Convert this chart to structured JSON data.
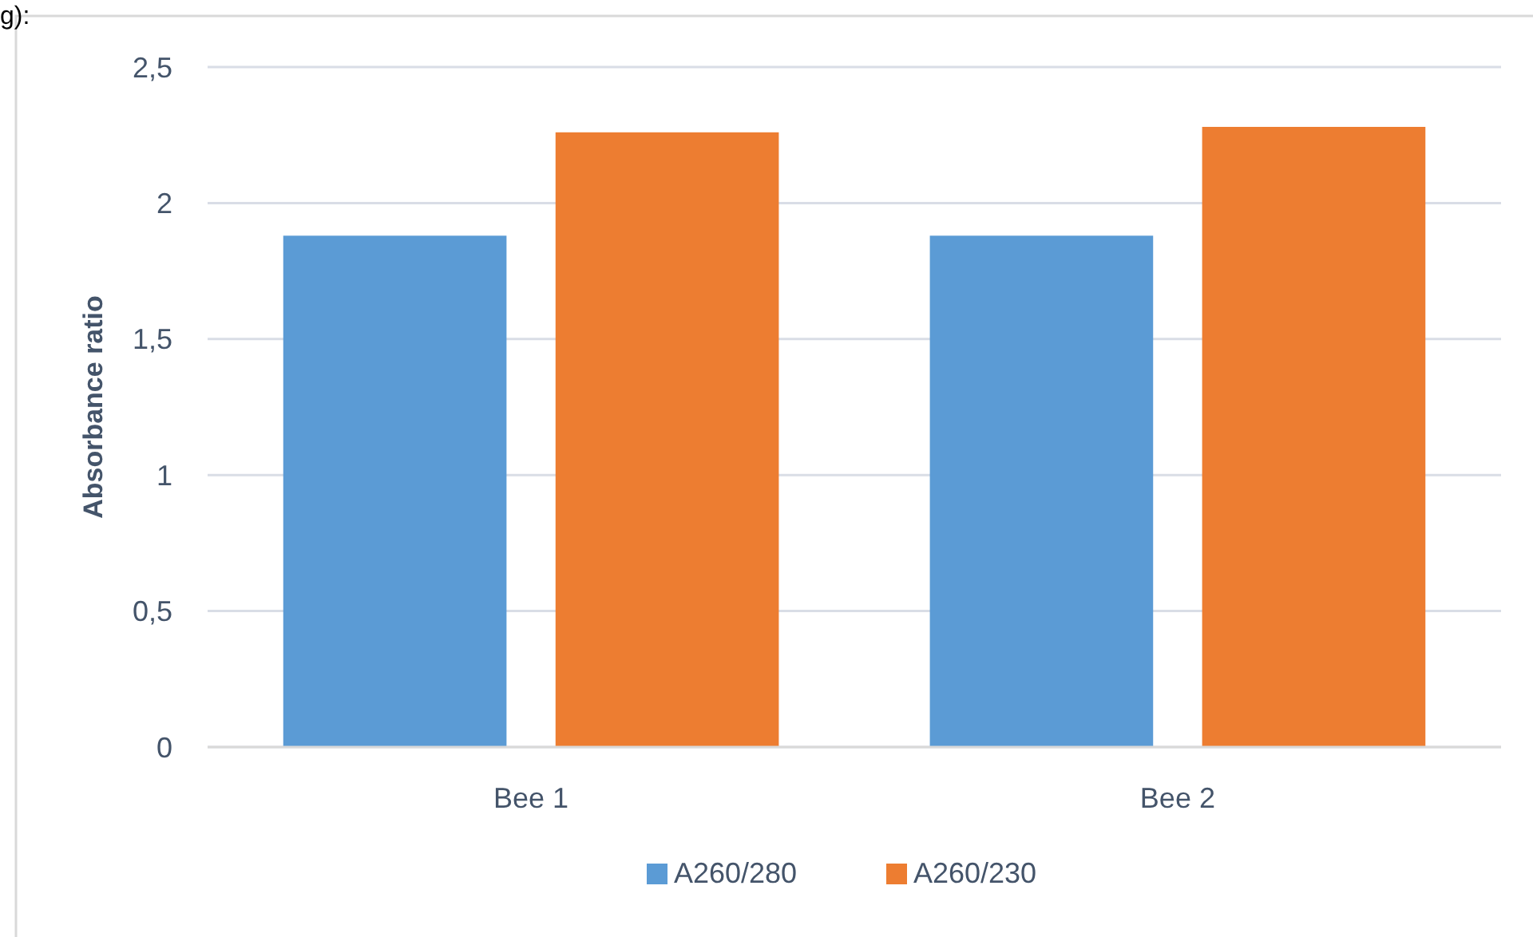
{
  "chart_data": {
    "type": "bar",
    "ylabel": "Absorbance ratio",
    "categories": [
      "Bee 1",
      "Bee 2"
    ],
    "series": [
      {
        "name": "A260/280",
        "color": "#5b9bd5",
        "values": [
          1.88,
          1.88
        ]
      },
      {
        "name": "A260/230",
        "color": "#ed7d31",
        "values": [
          2.26,
          2.28
        ]
      }
    ],
    "ylim": [
      0,
      2.5
    ],
    "yticks": [
      0,
      {
        "value": 0.5,
        "label": "0,5"
      },
      1,
      {
        "value": 1.5,
        "label": "1,5"
      },
      2,
      {
        "value": 2.5,
        "label": "2,5"
      }
    ],
    "grid": "y",
    "legend": "bottom",
    "annotations": [
      "g):"
    ]
  }
}
